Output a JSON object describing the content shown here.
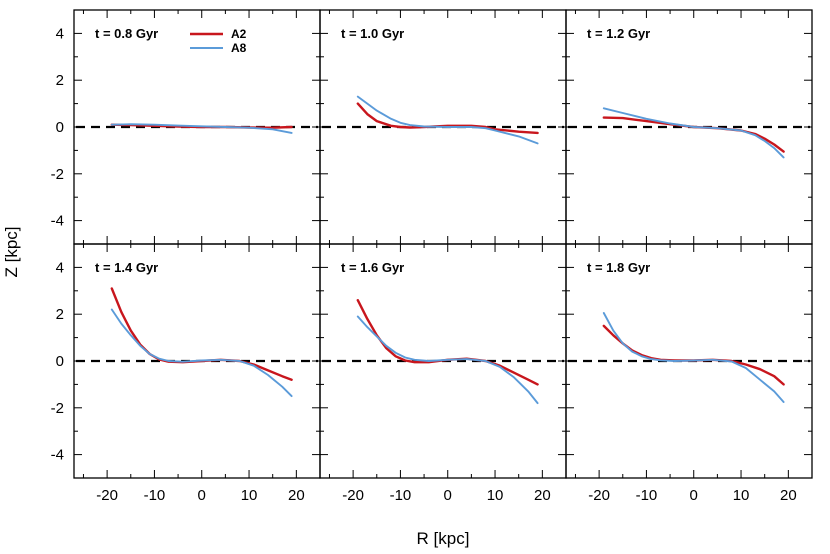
{
  "chart_data": {
    "type": "line",
    "layout": "2x3 panel grid, shared axes",
    "xlabel": "R [kpc]",
    "ylabel": "Z [kpc]",
    "xlim": [
      -27,
      25
    ],
    "ylim": [
      -5,
      5
    ],
    "xticks": [
      -20,
      -10,
      0,
      10,
      20
    ],
    "yticks": [
      -4,
      -2,
      0,
      2,
      4
    ],
    "reference_line": {
      "y": 0,
      "style": "dashed",
      "color": "#000000"
    },
    "legend": {
      "placement": "top of first panel",
      "entries": [
        {
          "name": "A2",
          "color": "#c8161d"
        },
        {
          "name": "A8",
          "color": "#5b9bd9"
        }
      ]
    },
    "panels": [
      {
        "label": "t = 0.8 Gyr",
        "series": [
          {
            "name": "A2",
            "color": "#c8161d",
            "x": [
              -19,
              -15,
              -10,
              -5,
              0,
              5,
              10,
              15,
              19
            ],
            "y": [
              0.1,
              0.08,
              0.05,
              0.02,
              0.0,
              0.0,
              -0.02,
              -0.03,
              0.0
            ]
          },
          {
            "name": "A8",
            "color": "#5b9bd9",
            "x": [
              -19,
              -15,
              -10,
              -5,
              0,
              5,
              10,
              15,
              19
            ],
            "y": [
              0.1,
              0.12,
              0.1,
              0.06,
              0.03,
              0.0,
              -0.03,
              -0.1,
              -0.25
            ]
          }
        ]
      },
      {
        "label": "t = 1.0 Gyr",
        "series": [
          {
            "name": "A2",
            "color": "#c8161d",
            "x": [
              -19,
              -17,
              -15,
              -12,
              -10,
              -8,
              -5,
              0,
              5,
              8,
              10,
              15,
              19
            ],
            "y": [
              1.0,
              0.55,
              0.25,
              0.05,
              0.0,
              -0.02,
              0.0,
              0.05,
              0.05,
              0.0,
              -0.1,
              -0.2,
              -0.25
            ]
          },
          {
            "name": "A8",
            "color": "#5b9bd9",
            "x": [
              -19,
              -17,
              -15,
              -12,
              -10,
              -8,
              -5,
              0,
              5,
              8,
              10,
              15,
              19
            ],
            "y": [
              1.3,
              1.0,
              0.7,
              0.35,
              0.18,
              0.08,
              0.02,
              0.0,
              0.0,
              -0.05,
              -0.15,
              -0.4,
              -0.7
            ]
          }
        ]
      },
      {
        "label": "t = 1.2 Gyr",
        "series": [
          {
            "name": "A2",
            "color": "#c8161d",
            "x": [
              -19,
              -15,
              -10,
              -5,
              0,
              5,
              10,
              13,
              15,
              17,
              19
            ],
            "y": [
              0.4,
              0.38,
              0.25,
              0.12,
              0.0,
              -0.05,
              -0.15,
              -0.3,
              -0.5,
              -0.75,
              -1.05
            ]
          },
          {
            "name": "A8",
            "color": "#5b9bd9",
            "x": [
              -19,
              -15,
              -10,
              -5,
              0,
              5,
              10,
              13,
              15,
              17,
              19
            ],
            "y": [
              0.8,
              0.6,
              0.35,
              0.15,
              0.0,
              -0.05,
              -0.15,
              -0.35,
              -0.6,
              -0.9,
              -1.3
            ]
          }
        ]
      },
      {
        "label": "t = 1.4 Gyr",
        "series": [
          {
            "name": "A2",
            "color": "#c8161d",
            "x": [
              -19,
              -17,
              -15,
              -13,
              -11,
              -9,
              -7,
              -4,
              0,
              4,
              8,
              11,
              14,
              17,
              19
            ],
            "y": [
              3.1,
              2.1,
              1.3,
              0.7,
              0.3,
              0.07,
              -0.03,
              -0.05,
              0.0,
              0.05,
              0.0,
              -0.15,
              -0.4,
              -0.65,
              -0.8
            ]
          },
          {
            "name": "A8",
            "color": "#5b9bd9",
            "x": [
              -19,
              -17,
              -15,
              -13,
              -11,
              -9,
              -7,
              -4,
              0,
              4,
              8,
              11,
              14,
              17,
              19
            ],
            "y": [
              2.2,
              1.6,
              1.1,
              0.65,
              0.3,
              0.1,
              0.0,
              -0.03,
              0.02,
              0.05,
              0.0,
              -0.2,
              -0.6,
              -1.1,
              -1.5
            ]
          }
        ]
      },
      {
        "label": "t = 1.6 Gyr",
        "series": [
          {
            "name": "A2",
            "color": "#c8161d",
            "x": [
              -19,
              -17,
              -15,
              -13,
              -11,
              -9,
              -7,
              -4,
              0,
              4,
              8,
              11,
              14,
              17,
              19
            ],
            "y": [
              2.6,
              1.8,
              1.1,
              0.55,
              0.2,
              0.02,
              -0.05,
              -0.05,
              0.05,
              0.1,
              0.0,
              -0.2,
              -0.5,
              -0.8,
              -1.0
            ]
          },
          {
            "name": "A8",
            "color": "#5b9bd9",
            "x": [
              -19,
              -17,
              -15,
              -13,
              -11,
              -9,
              -7,
              -4,
              0,
              4,
              8,
              11,
              14,
              17,
              19
            ],
            "y": [
              1.9,
              1.45,
              1.05,
              0.65,
              0.35,
              0.15,
              0.05,
              0.0,
              0.05,
              0.08,
              0.0,
              -0.25,
              -0.7,
              -1.3,
              -1.8
            ]
          }
        ]
      },
      {
        "label": "t = 1.8 Gyr",
        "series": [
          {
            "name": "A2",
            "color": "#c8161d",
            "x": [
              -19,
              -17,
              -15,
              -13,
              -11,
              -9,
              -7,
              -4,
              0,
              4,
              8,
              11,
              14,
              17,
              19
            ],
            "y": [
              1.5,
              1.1,
              0.75,
              0.45,
              0.25,
              0.12,
              0.05,
              0.02,
              0.02,
              0.05,
              0.0,
              -0.15,
              -0.35,
              -0.65,
              -1.0
            ]
          },
          {
            "name": "A8",
            "color": "#5b9bd9",
            "x": [
              -19,
              -17,
              -15,
              -13,
              -11,
              -9,
              -7,
              -4,
              0,
              4,
              8,
              11,
              14,
              17,
              19
            ],
            "y": [
              2.05,
              1.3,
              0.75,
              0.4,
              0.2,
              0.08,
              0.03,
              0.0,
              0.02,
              0.05,
              -0.02,
              -0.3,
              -0.8,
              -1.3,
              -1.75
            ]
          }
        ]
      }
    ]
  }
}
